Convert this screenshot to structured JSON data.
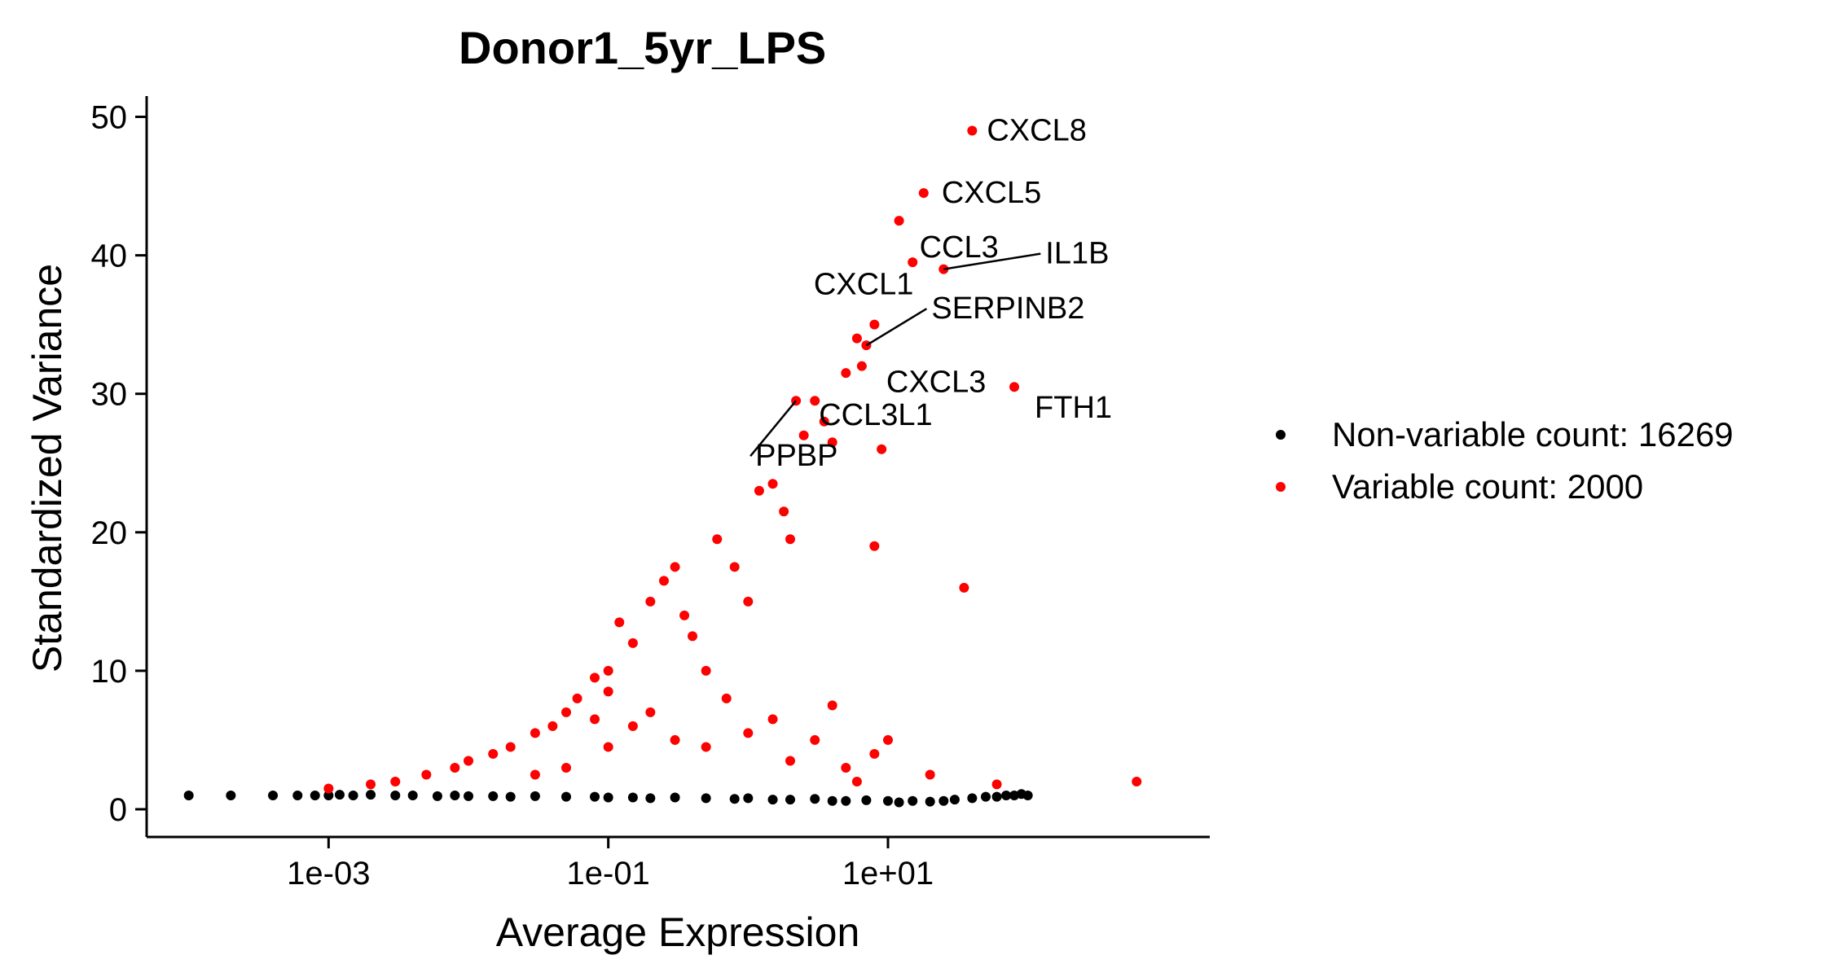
{
  "chart_data": {
    "type": "scatter",
    "title": "Donor1_5yr_LPS",
    "xlabel": "Average Expression",
    "ylabel": "Standardized Variance",
    "x_scale": "log10",
    "xlim": [
      5e-05,
      2000
    ],
    "ylim": [
      -2,
      51.5
    ],
    "x_ticks": [
      {
        "value": 0.001,
        "label": "1e-03"
      },
      {
        "value": 0.1,
        "label": "1e-01"
      },
      {
        "value": 10,
        "label": "1e+01"
      }
    ],
    "y_ticks": [
      {
        "value": 0,
        "label": "0"
      },
      {
        "value": 10,
        "label": "10"
      },
      {
        "value": 20,
        "label": "20"
      },
      {
        "value": 30,
        "label": "30"
      },
      {
        "value": 40,
        "label": "40"
      },
      {
        "value": 50,
        "label": "50"
      }
    ],
    "grid": false,
    "legend_position": "right",
    "series": [
      {
        "name": "Non-variable count: 16269",
        "color": "#000000",
        "points": [
          [
            0.0001,
            1.0
          ],
          [
            0.0002,
            1.0
          ],
          [
            0.0004,
            1.0
          ],
          [
            0.0006,
            1.0
          ],
          [
            0.0008,
            1.0
          ],
          [
            0.001,
            1.0
          ],
          [
            0.0012,
            1.05
          ],
          [
            0.0015,
            1.0
          ],
          [
            0.002,
            1.05
          ],
          [
            0.003,
            1.0
          ],
          [
            0.004,
            1.0
          ],
          [
            0.006,
            0.95
          ],
          [
            0.008,
            1.0
          ],
          [
            0.01,
            0.95
          ],
          [
            0.015,
            0.95
          ],
          [
            0.02,
            0.9
          ],
          [
            0.03,
            0.95
          ],
          [
            0.05,
            0.9
          ],
          [
            0.08,
            0.9
          ],
          [
            0.1,
            0.85
          ],
          [
            0.15,
            0.85
          ],
          [
            0.2,
            0.8
          ],
          [
            0.3,
            0.85
          ],
          [
            0.5,
            0.8
          ],
          [
            0.8,
            0.75
          ],
          [
            1.0,
            0.8
          ],
          [
            1.5,
            0.7
          ],
          [
            2.0,
            0.7
          ],
          [
            3.0,
            0.75
          ],
          [
            4.0,
            0.6
          ],
          [
            5.0,
            0.6
          ],
          [
            7.0,
            0.65
          ],
          [
            10,
            0.6
          ],
          [
            12,
            0.5
          ],
          [
            15,
            0.6
          ],
          [
            20,
            0.55
          ],
          [
            25,
            0.6
          ],
          [
            30,
            0.7
          ],
          [
            40,
            0.8
          ],
          [
            50,
            0.9
          ],
          [
            60,
            0.9
          ],
          [
            70,
            1.0
          ],
          [
            80,
            1.0
          ],
          [
            90,
            1.1
          ],
          [
            100,
            1.0
          ]
        ]
      },
      {
        "name": "Variable count: 2000",
        "color": "#ff0000",
        "points": [
          [
            0.001,
            1.5
          ],
          [
            0.002,
            1.8
          ],
          [
            0.003,
            2.0
          ],
          [
            0.005,
            2.5
          ],
          [
            0.008,
            3.0
          ],
          [
            0.01,
            3.5
          ],
          [
            0.015,
            4.0
          ],
          [
            0.02,
            4.5
          ],
          [
            0.03,
            5.5
          ],
          [
            0.04,
            6.0
          ],
          [
            0.05,
            7.0
          ],
          [
            0.06,
            8.0
          ],
          [
            0.08,
            9.5
          ],
          [
            0.1,
            10.0
          ],
          [
            0.1,
            8.5
          ],
          [
            0.12,
            13.5
          ],
          [
            0.15,
            12.0
          ],
          [
            0.2,
            15.0
          ],
          [
            0.25,
            16.5
          ],
          [
            0.3,
            17.5
          ],
          [
            0.35,
            14.0
          ],
          [
            0.4,
            12.5
          ],
          [
            0.5,
            10.0
          ],
          [
            0.6,
            19.5
          ],
          [
            0.8,
            17.5
          ],
          [
            1.0,
            15.0
          ],
          [
            1.2,
            23.0
          ],
          [
            1.5,
            23.5
          ],
          [
            1.8,
            21.5
          ],
          [
            2.0,
            19.5
          ],
          [
            2.2,
            29.5
          ],
          [
            2.5,
            27.0
          ],
          [
            3.0,
            29.5
          ],
          [
            3.5,
            28.0
          ],
          [
            4.0,
            26.5
          ],
          [
            5.0,
            31.5
          ],
          [
            6.0,
            34.0
          ],
          [
            6.5,
            32.0
          ],
          [
            7.0,
            33.5
          ],
          [
            8.0,
            35.0
          ],
          [
            9.0,
            26.0
          ],
          [
            12.0,
            42.5
          ],
          [
            15.0,
            39.5
          ],
          [
            18.0,
            44.5
          ],
          [
            25.0,
            39.0
          ],
          [
            40.0,
            49.0
          ],
          [
            80.0,
            30.5
          ],
          [
            35.0,
            16.0
          ],
          [
            8.0,
            19.0
          ],
          [
            600.0,
            2.0
          ],
          [
            0.15,
            6.0
          ],
          [
            0.2,
            7.0
          ],
          [
            0.3,
            5.0
          ],
          [
            0.5,
            4.5
          ],
          [
            0.7,
            8.0
          ],
          [
            1.0,
            5.5
          ],
          [
            1.5,
            6.5
          ],
          [
            2.0,
            3.5
          ],
          [
            3.0,
            5.0
          ],
          [
            4.0,
            7.5
          ],
          [
            5.0,
            3.0
          ],
          [
            6.0,
            2.0
          ],
          [
            8.0,
            4.0
          ],
          [
            10.0,
            5.0
          ],
          [
            20.0,
            2.5
          ],
          [
            60.0,
            1.8
          ],
          [
            0.05,
            3.0
          ],
          [
            0.03,
            2.5
          ],
          [
            0.1,
            4.5
          ],
          [
            0.08,
            6.5
          ]
        ]
      }
    ],
    "annotations": [
      {
        "label": "CXCL8",
        "x": 40.0,
        "y": 49.0
      },
      {
        "label": "CXCL5",
        "x": 18.0,
        "y": 44.5
      },
      {
        "label": "CCL3",
        "x": 12.0,
        "y": 42.5
      },
      {
        "label": "IL1B",
        "x": 25.0,
        "y": 39.0
      },
      {
        "label": "CXCL1",
        "x": 8.0,
        "y": 35.0
      },
      {
        "label": "SERPINB2",
        "x": 7.0,
        "y": 33.5
      },
      {
        "label": "CXCL3",
        "x": 6.5,
        "y": 32.0
      },
      {
        "label": "FTH1",
        "x": 80.0,
        "y": 30.5
      },
      {
        "label": "CCL3L1",
        "x": 3.0,
        "y": 29.5
      },
      {
        "label": "PPBP",
        "x": 2.2,
        "y": 29.5
      }
    ]
  }
}
